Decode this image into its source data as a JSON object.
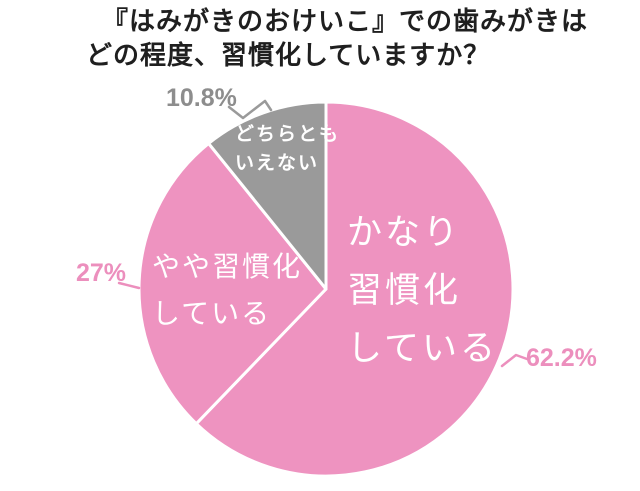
{
  "title": {
    "line1": "『はみがきのおけいこ』での歯みがきは",
    "line2": "どの程度、習慣化していますか？"
  },
  "chart_data": {
    "type": "pie",
    "title": "『はみがきのおけいこ』での歯みがきは どの程度、習慣化していますか？",
    "direction": "clockwise",
    "start_angle_deg": 0,
    "legend": "none",
    "divider_color": "#ffffff",
    "slices": [
      {
        "label": "かなり習慣化している",
        "label_lines": [
          "かなり",
          "習慣化",
          "している"
        ],
        "value": 62.2,
        "pct_label": "62.2%",
        "color": "#ee93c0",
        "label_color": "#ffffff",
        "pct_color": "#ec8fbd"
      },
      {
        "label": "やや習慣化している",
        "label_lines": [
          "やや習慣化",
          "している"
        ],
        "value": 27,
        "pct_label": "27%",
        "color": "#ee93c0",
        "label_color": "#ffffff",
        "pct_color": "#ec8fbd"
      },
      {
        "label": "どちらともいえない",
        "label_lines": [
          "どちらとも",
          "いえない"
        ],
        "value": 10.8,
        "pct_label": "10.8%",
        "color": "#9a9a9a",
        "label_color": "#ffffff",
        "pct_color": "#8d8d8d"
      }
    ]
  }
}
